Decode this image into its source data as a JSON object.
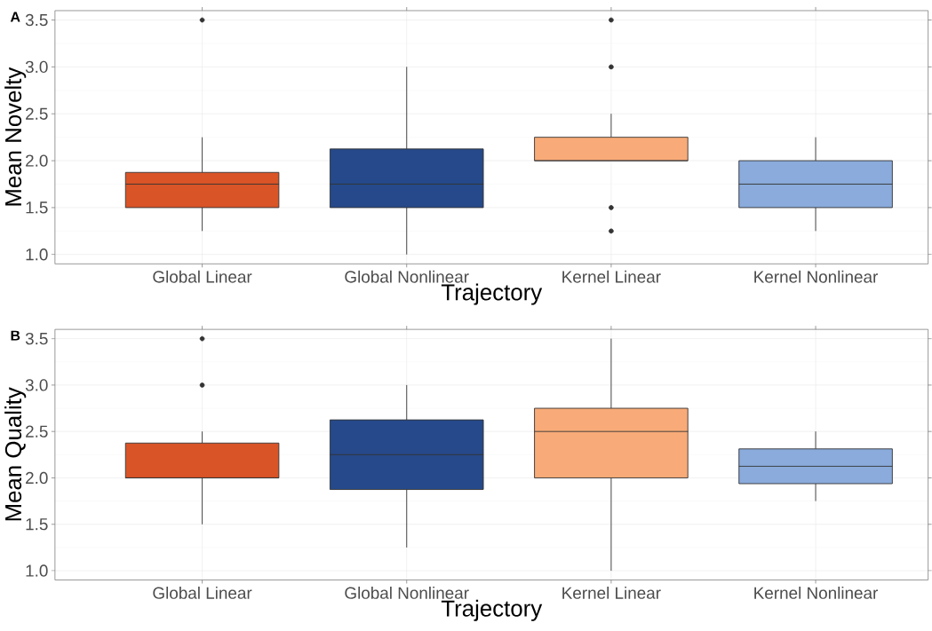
{
  "chart_data": [
    {
      "type": "box",
      "annotations": [
        "A"
      ],
      "xlabel": "Trajectory",
      "ylabel": "Mean Novelty",
      "categories": [
        "Global Linear",
        "Global Nonlinear",
        "Kernel Linear",
        "Kernel Nonlinear"
      ],
      "colors": [
        "#d95427",
        "#25498a",
        "#f8ab78",
        "#8aabdb"
      ],
      "boxes": [
        {
          "low": 1.25,
          "q1": 1.5,
          "median": 1.75,
          "q3": 1.875,
          "high": 2.25,
          "outliers": [
            3.5
          ]
        },
        {
          "low": 1.0,
          "q1": 1.5,
          "median": 1.75,
          "q3": 2.125,
          "high": 3.0
        },
        {
          "low": 2.0,
          "q1": 2.0,
          "median": 2.0,
          "q3": 2.25,
          "high": 2.5,
          "outliers": [
            3.5,
            3.0,
            1.5,
            1.25
          ]
        },
        {
          "low": 1.25,
          "q1": 1.5,
          "median": 1.75,
          "q3": 2.0,
          "high": 2.25
        }
      ],
      "ylim": [
        0.9,
        3.6
      ],
      "yticks": [
        {
          "value": 1,
          "label": "1.0"
        },
        {
          "value": 1.5,
          "label": "1.5"
        },
        {
          "value": 2,
          "label": "2.0"
        },
        {
          "value": 2.5,
          "label": "2.5"
        },
        {
          "value": 3,
          "label": "3.0"
        },
        {
          "value": 3.5,
          "label": "3.5"
        }
      ],
      "grid": true
    },
    {
      "type": "box",
      "annotations": [
        "B"
      ],
      "xlabel": "Trajectory",
      "ylabel": "Mean Quality",
      "categories": [
        "Global Linear",
        "Global Nonlinear",
        "Kernel Linear",
        "Kernel Nonlinear"
      ],
      "colors": [
        "#d95427",
        "#25498a",
        "#f8ab78",
        "#8aabdb"
      ],
      "boxes": [
        {
          "low": 1.5,
          "q1": 2.0,
          "median": 2.0,
          "q3": 2.375,
          "high": 2.5,
          "outliers": [
            3.0,
            3.5
          ]
        },
        {
          "low": 1.25,
          "q1": 1.875,
          "median": 2.25,
          "q3": 2.625,
          "high": 3.0
        },
        {
          "low": 1.0,
          "q1": 2.0,
          "median": 2.5,
          "q3": 2.75,
          "high": 3.5
        },
        {
          "low": 1.75,
          "q1": 1.9375,
          "median": 2.125,
          "q3": 2.3125,
          "high": 2.5
        }
      ],
      "ylim": [
        0.9,
        3.6
      ],
      "yticks": [
        {
          "value": 1,
          "label": "1.0"
        },
        {
          "value": 1.5,
          "label": "1.5"
        },
        {
          "value": 2,
          "label": "2.0"
        },
        {
          "value": 2.5,
          "label": "2.5"
        },
        {
          "value": 3,
          "label": "3.0"
        },
        {
          "value": 3.5,
          "label": "3.5"
        }
      ],
      "grid": true
    }
  ]
}
